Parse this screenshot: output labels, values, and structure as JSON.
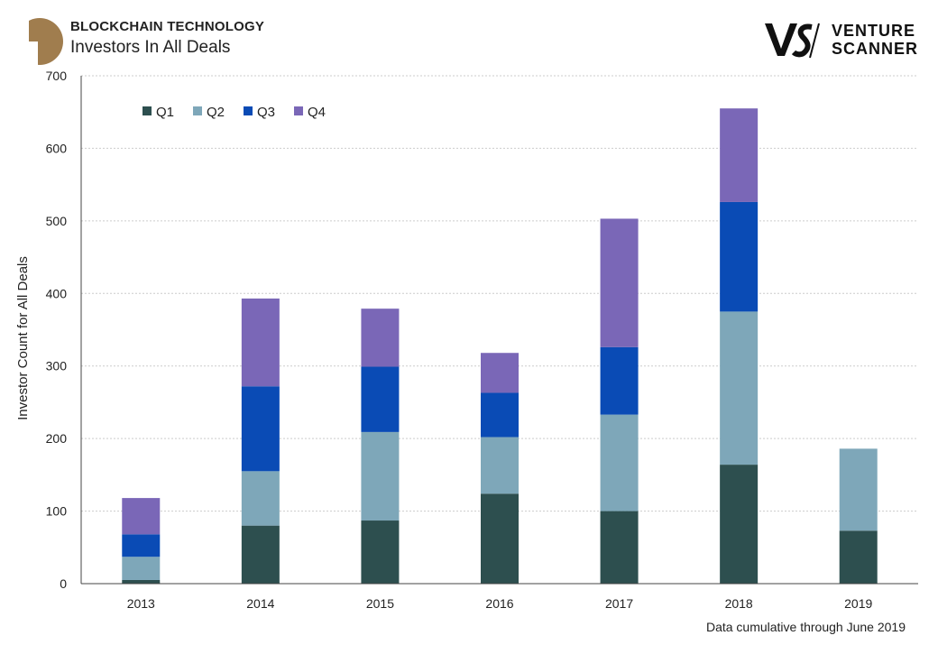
{
  "header": {
    "eyebrow": "BLOCKCHAIN TECHNOLOGY",
    "title": "Investors In All Deals",
    "brand_words": [
      "VENTURE",
      "SCANNER"
    ]
  },
  "footnote": "Data cumulative through June 2019",
  "chart_data": {
    "type": "bar",
    "stacked": true,
    "categories": [
      "2013",
      "2014",
      "2015",
      "2016",
      "2017",
      "2018",
      "2019"
    ],
    "series": [
      {
        "name": "Q1",
        "color": "#2d4f4f",
        "values": [
          5,
          80,
          87,
          124,
          100,
          164,
          73
        ]
      },
      {
        "name": "Q2",
        "color": "#7ea7b9",
        "values": [
          32,
          75,
          122,
          78,
          133,
          211,
          113
        ]
      },
      {
        "name": "Q3",
        "color": "#0a4bb5",
        "values": [
          31,
          117,
          90,
          61,
          93,
          151,
          null
        ]
      },
      {
        "name": "Q4",
        "color": "#7a67b7",
        "values": [
          50,
          121,
          80,
          55,
          177,
          129,
          null
        ]
      }
    ],
    "ylabel": "Investor Count for All Deals",
    "ylim": [
      0,
      700
    ],
    "yticks": [
      0,
      100,
      200,
      300,
      400,
      500,
      600,
      700
    ],
    "grid": true,
    "legend_position": "top-left"
  }
}
